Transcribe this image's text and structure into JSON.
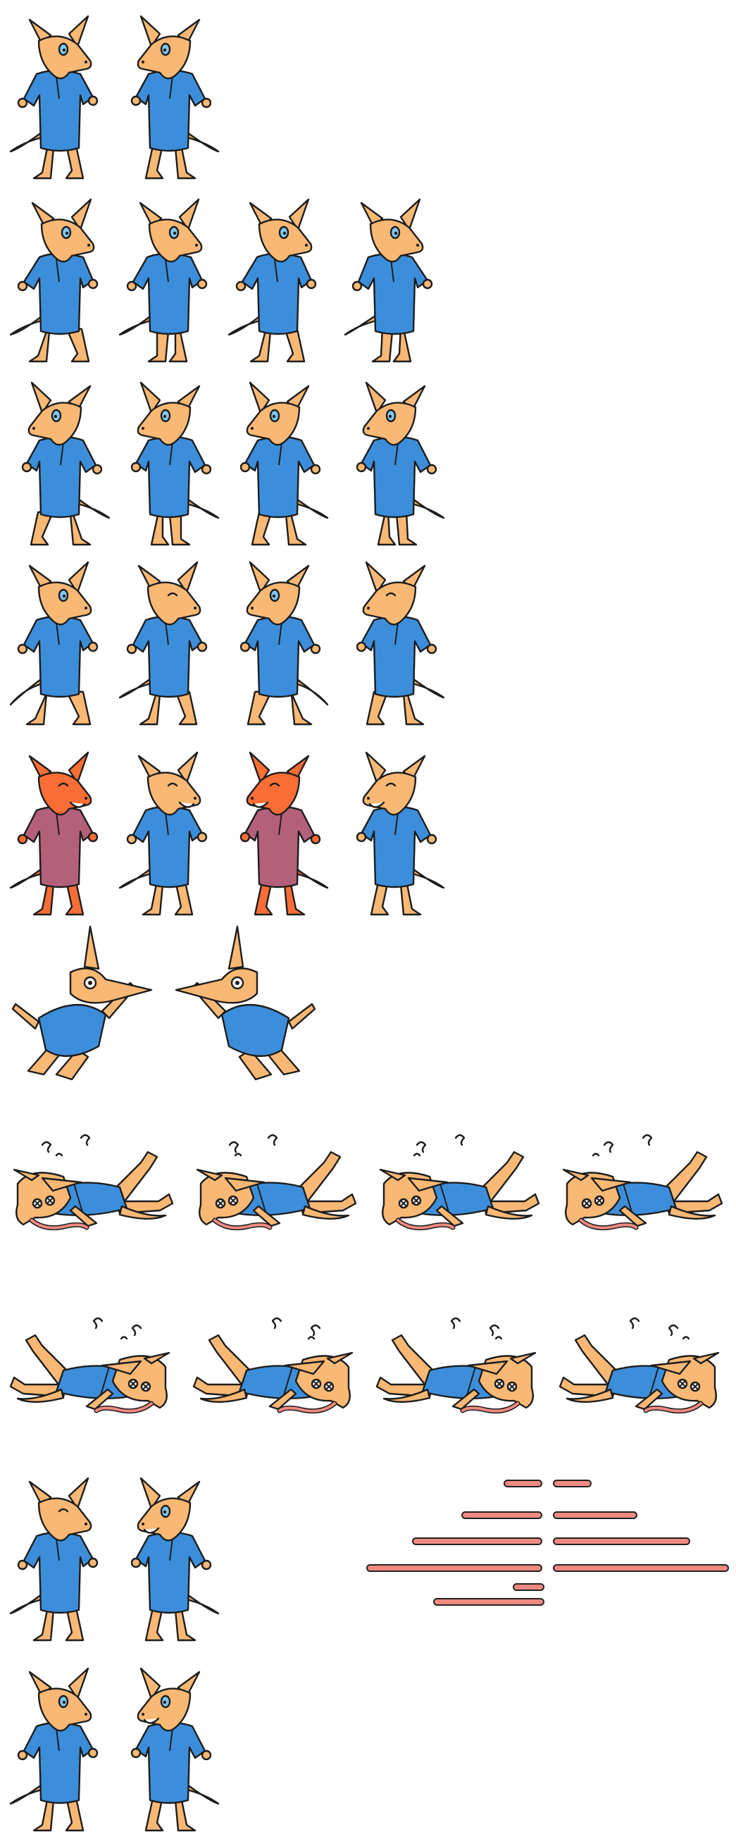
{
  "sheet": {
    "background": "#ffffff",
    "colors": {
      "fur": "#F9B874",
      "fur_shadow": "#E79D55",
      "shirt": "#3C8EDB",
      "shirt_shadow": "#2A6FB8",
      "eye": "#7EC7F2",
      "outline": "#1C1C1C",
      "hurt_fur": "#FA6E35",
      "hurt_shirt": "#B5607A",
      "tongue": "#F08A80"
    },
    "rows": [
      {
        "name": "idle",
        "frames": [
          {
            "pose": "stand-right"
          },
          {
            "pose": "stand-left"
          }
        ]
      },
      {
        "name": "walk-a",
        "frames": [
          {
            "pose": "walk-1"
          },
          {
            "pose": "walk-2"
          },
          {
            "pose": "walk-3"
          },
          {
            "pose": "walk-4"
          }
        ]
      },
      {
        "name": "walk-b",
        "frames": [
          {
            "pose": "walk-5"
          },
          {
            "pose": "walk-6"
          },
          {
            "pose": "walk-7"
          },
          {
            "pose": "walk-8"
          }
        ]
      },
      {
        "name": "jump",
        "frames": [
          {
            "pose": "jump-1"
          },
          {
            "pose": "jump-2"
          },
          {
            "pose": "jump-3"
          },
          {
            "pose": "jump-4"
          }
        ]
      },
      {
        "name": "hurt",
        "frames": [
          {
            "pose": "hurt-red"
          },
          {
            "pose": "hurt-normal"
          },
          {
            "pose": "hurt-red"
          },
          {
            "pose": "hurt-normal"
          }
        ]
      },
      {
        "name": "fall",
        "frames": [
          {
            "pose": "fall-right"
          },
          {
            "pose": "fall-left"
          }
        ]
      },
      {
        "name": "ko-left",
        "frames": [
          {
            "pose": "ko-1"
          },
          {
            "pose": "ko-2"
          },
          {
            "pose": "ko-3"
          },
          {
            "pose": "ko-4"
          }
        ]
      },
      {
        "name": "ko-right",
        "frames": [
          {
            "pose": "ko-5"
          },
          {
            "pose": "ko-6"
          },
          {
            "pose": "ko-7"
          },
          {
            "pose": "ko-8"
          }
        ]
      },
      {
        "name": "look",
        "frames": [
          {
            "pose": "look-1"
          },
          {
            "pose": "look-2"
          }
        ]
      },
      {
        "name": "turn",
        "frames": [
          {
            "pose": "turn-1"
          },
          {
            "pose": "turn-2"
          }
        ]
      }
    ],
    "tongue_strips": {
      "count": 11,
      "color": "#F08A80"
    }
  }
}
